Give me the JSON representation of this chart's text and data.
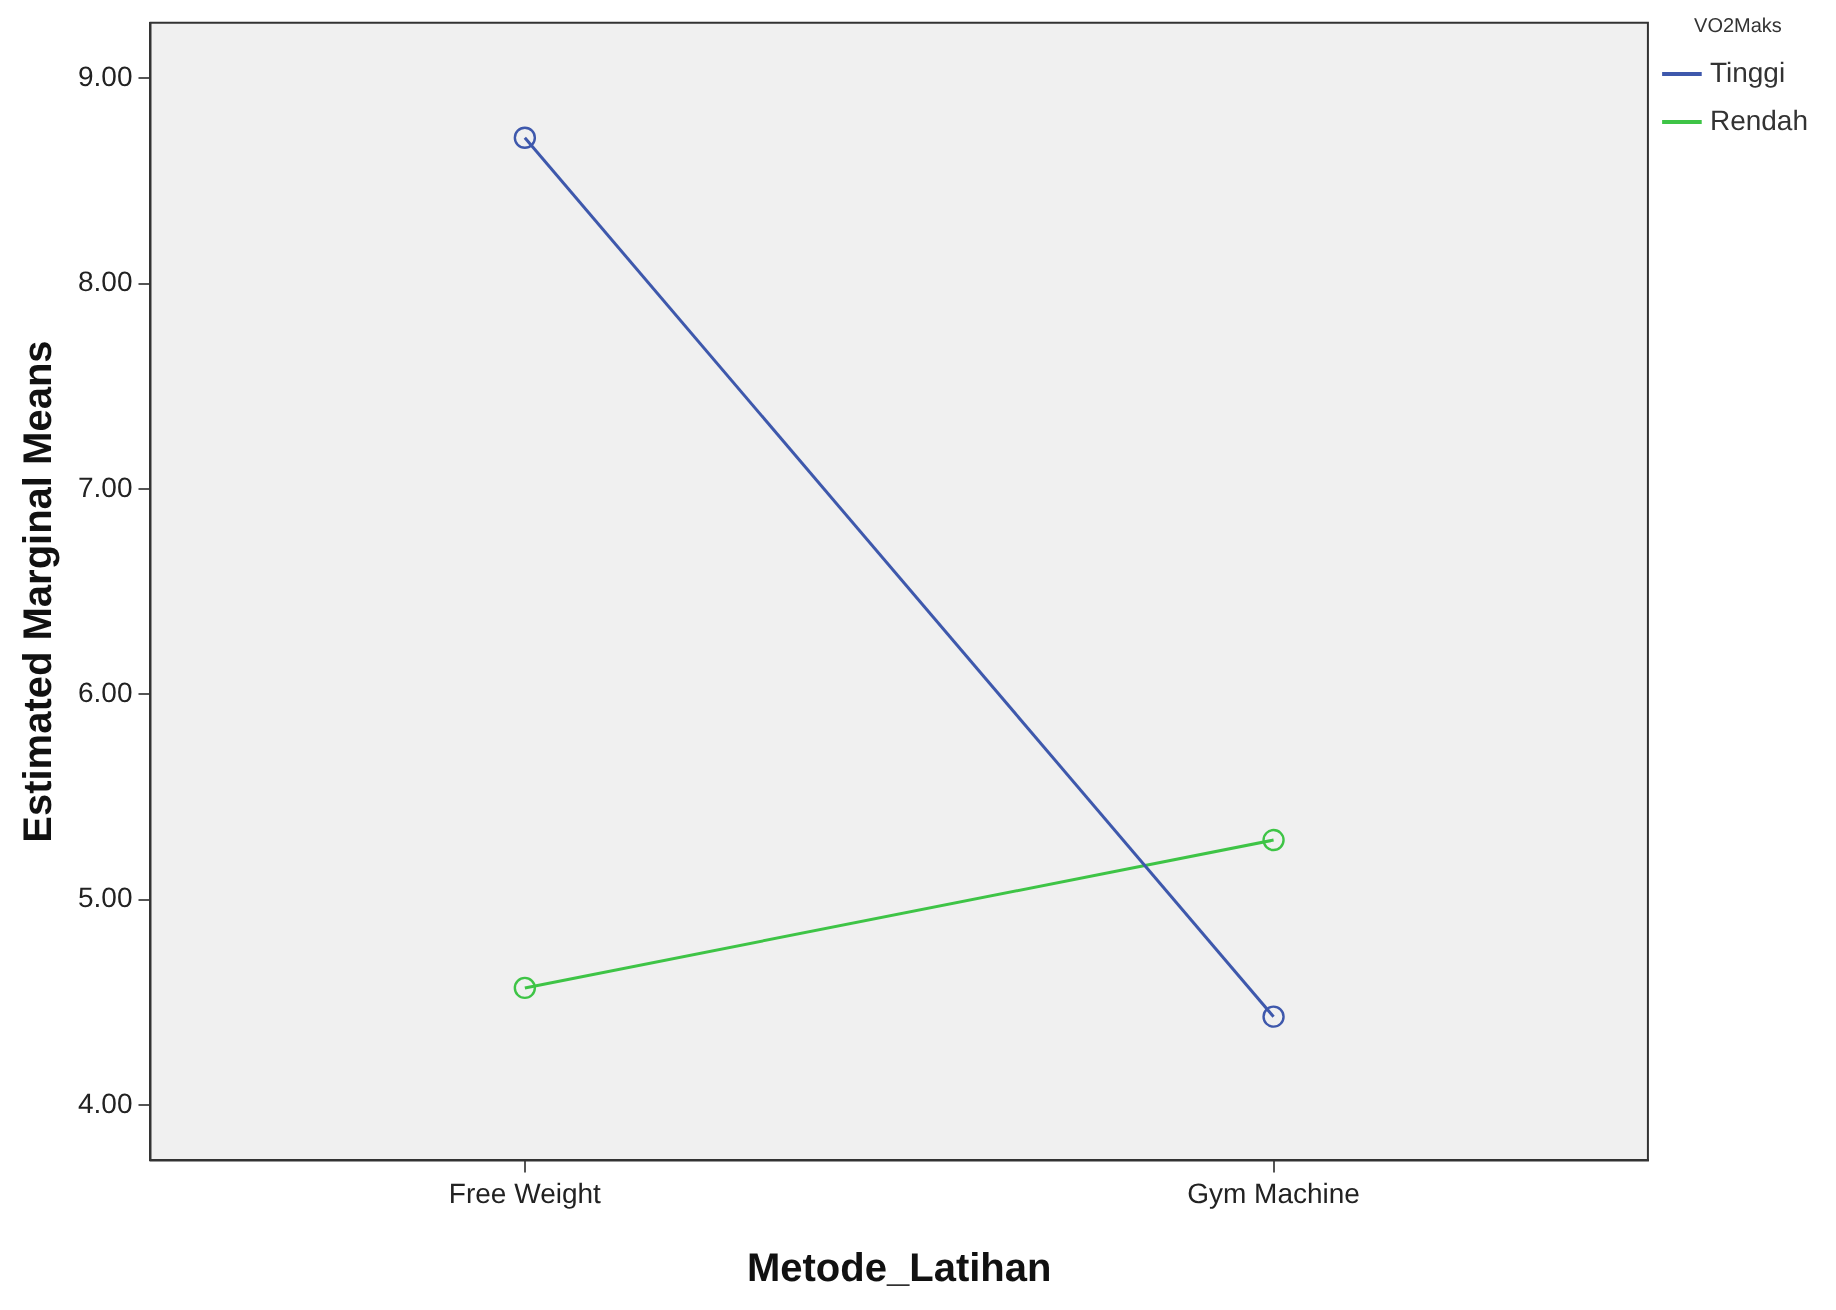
{
  "chart_data": {
    "type": "line",
    "xlabel": "Metode_Latihan",
    "ylabel": "Estimated Marginal Means",
    "legend_title": "VO2Maks",
    "categories": [
      "Free Weight",
      "Gym Machine"
    ],
    "series": [
      {
        "name": "Tinggi",
        "color": "#3e58ac",
        "values": [
          8.71,
          4.43
        ]
      },
      {
        "name": "Rendah",
        "color": "#3ec446",
        "values": [
          4.57,
          5.29
        ]
      }
    ],
    "ylim": [
      3.73,
      9.27
    ],
    "yticks": [
      {
        "value": 4,
        "label": "4.00"
      },
      {
        "value": 5,
        "label": "5.00"
      },
      {
        "value": 6,
        "label": "6.00"
      },
      {
        "value": 7,
        "label": "7.00"
      },
      {
        "value": 8,
        "label": "8.00"
      },
      {
        "value": 9,
        "label": "9.00"
      }
    ],
    "grid": false,
    "legend": "top right",
    "marker": "circle",
    "line_style": "solid"
  }
}
